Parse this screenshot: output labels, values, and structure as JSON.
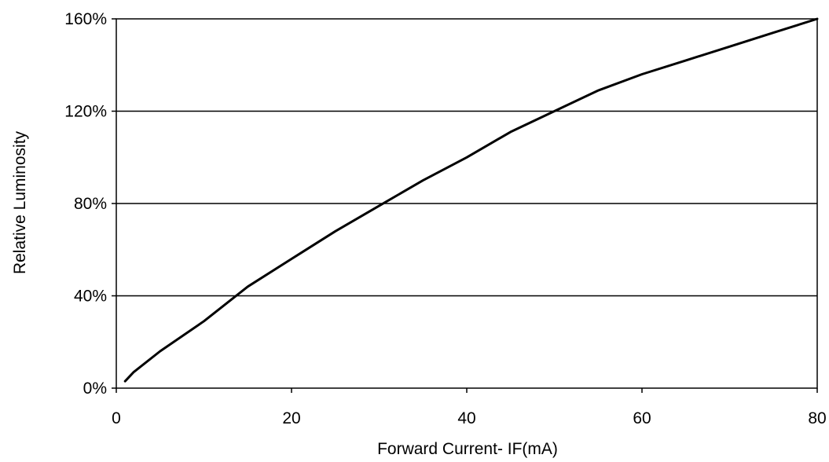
{
  "chart_data": {
    "type": "line",
    "title": "",
    "xlabel": "Forward Current- IF(mA)",
    "ylabel": "Relative Luminosity",
    "xlim": [
      0,
      80
    ],
    "ylim": [
      0,
      160
    ],
    "x_ticks": [
      0,
      20,
      40,
      60,
      80
    ],
    "x_tick_labels": [
      "0",
      "20",
      "40",
      "60",
      "80"
    ],
    "y_ticks": [
      0,
      40,
      80,
      120,
      160
    ],
    "y_tick_labels": [
      "0%",
      "40%",
      "80%",
      "120%",
      "160%"
    ],
    "grid": "horizontal",
    "legend": "none",
    "colors": {
      "line": "#000000",
      "grid": "#000000",
      "frame": "#000000"
    },
    "series": [
      {
        "x": [
          1,
          2,
          5,
          10,
          15,
          20,
          25,
          30,
          35,
          40,
          45,
          50,
          55,
          60,
          65,
          70,
          75,
          80
        ],
        "y": [
          3,
          7,
          16,
          29,
          44,
          56,
          68,
          79,
          90,
          100,
          111,
          120,
          129,
          136,
          142,
          148,
          154,
          160
        ]
      }
    ]
  }
}
